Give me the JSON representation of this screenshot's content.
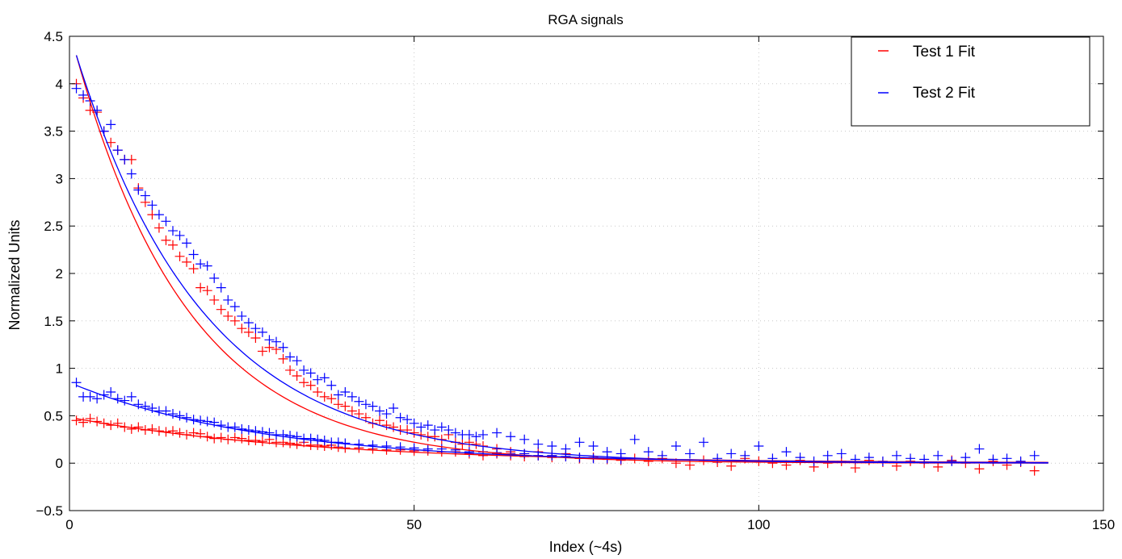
{
  "chart_data": {
    "type": "line",
    "title": "RGA signals",
    "xlabel": "Index (~4s)",
    "ylabel": "Normalized Units",
    "xlim": [
      0,
      150
    ],
    "ylim": [
      -0.5,
      4.5
    ],
    "xticks": [
      0,
      50,
      100,
      150
    ],
    "xtick_labels": [
      "0",
      "50",
      "100",
      "150"
    ],
    "yticks": [
      -0.5,
      0,
      0.5,
      1,
      1.5,
      2,
      2.5,
      3,
      3.5,
      4,
      4.5
    ],
    "ytick_labels": [
      "−0.5",
      "0",
      "0.5",
      "1",
      "1.5",
      "2",
      "2.5",
      "3",
      "3.5",
      "4",
      "4.5"
    ],
    "grid": true,
    "legend_position": "top-right",
    "legend": [
      {
        "label": "Test 1 Fit",
        "color": "#ff0000"
      },
      {
        "label": "Test 2 Fit",
        "color": "#0000ff"
      }
    ],
    "series": [
      {
        "kind": "markers",
        "color": "#ff0000",
        "x": [
          1,
          2,
          3,
          4,
          5,
          6,
          7,
          8,
          9,
          10,
          11,
          12,
          13,
          14,
          15,
          16,
          17,
          18,
          19,
          20,
          21,
          22,
          23,
          24,
          25,
          26,
          27,
          28,
          29,
          30,
          31,
          32,
          33,
          34,
          35,
          36,
          37,
          38,
          39,
          40,
          41,
          42,
          43,
          44,
          45,
          46,
          47,
          48,
          49,
          50,
          51,
          52,
          53,
          54,
          55,
          56,
          57,
          58,
          59,
          60,
          62,
          64,
          66,
          68,
          70,
          72,
          74,
          76,
          78,
          80,
          82,
          84,
          86,
          88,
          90,
          92,
          94,
          96,
          98,
          100,
          102,
          104,
          106,
          108,
          110,
          112,
          114,
          116,
          118,
          120,
          122,
          124,
          126,
          128,
          130,
          132,
          134,
          136,
          138,
          140
        ],
        "y": [
          4.0,
          3.85,
          3.72,
          3.7,
          3.5,
          3.38,
          3.3,
          3.2,
          3.2,
          2.9,
          2.75,
          2.62,
          2.48,
          2.35,
          2.3,
          2.18,
          2.12,
          2.05,
          1.85,
          1.82,
          1.72,
          1.62,
          1.55,
          1.5,
          1.42,
          1.38,
          1.32,
          1.18,
          1.22,
          1.2,
          1.1,
          0.98,
          0.92,
          0.85,
          0.82,
          0.75,
          0.7,
          0.68,
          0.62,
          0.6,
          0.55,
          0.52,
          0.48,
          0.42,
          0.45,
          0.4,
          0.38,
          0.35,
          0.35,
          0.32,
          0.3,
          0.28,
          0.28,
          0.25,
          0.3,
          0.22,
          0.2,
          0.22,
          0.2,
          0.18,
          0.15,
          0.12,
          0.1,
          0.12,
          0.08,
          0.1,
          0.05,
          0.06,
          0.04,
          0.03,
          0.05,
          0.02,
          0.05,
          0.0,
          -0.02,
          0.03,
          0.01,
          -0.03,
          0.05,
          0.02,
          0.0,
          -0.02,
          0.03,
          -0.04,
          0.0,
          0.02,
          -0.05,
          0.03,
          0.01,
          -0.03,
          0.02,
          0.0,
          -0.04,
          0.03,
          0.0,
          -0.06,
          0.02,
          -0.02,
          0.01,
          -0.08
        ]
      },
      {
        "kind": "markers",
        "color": "#ff0000",
        "x": [
          1,
          2,
          3,
          4,
          5,
          6,
          7,
          8,
          9,
          10,
          11,
          12,
          13,
          14,
          15,
          16,
          17,
          18,
          19,
          20,
          21,
          22,
          23,
          24,
          25,
          26,
          27,
          28,
          29,
          30,
          31,
          32,
          33,
          34,
          35,
          36,
          37,
          38,
          39,
          40,
          42,
          44,
          46,
          48,
          50,
          52,
          54,
          56,
          58,
          60,
          62,
          64,
          66,
          68,
          70,
          72,
          74,
          76,
          78,
          80
        ],
        "y": [
          0.45,
          0.43,
          0.47,
          0.44,
          0.42,
          0.4,
          0.42,
          0.38,
          0.36,
          0.38,
          0.35,
          0.36,
          0.34,
          0.33,
          0.34,
          0.32,
          0.3,
          0.32,
          0.31,
          0.28,
          0.26,
          0.27,
          0.25,
          0.27,
          0.26,
          0.24,
          0.24,
          0.23,
          0.25,
          0.22,
          0.22,
          0.21,
          0.2,
          0.22,
          0.19,
          0.19,
          0.18,
          0.19,
          0.17,
          0.16,
          0.16,
          0.15,
          0.14,
          0.14,
          0.13,
          0.13,
          0.12,
          0.12,
          0.1,
          0.08,
          0.1,
          0.08,
          0.07,
          0.08,
          0.06,
          0.07,
          0.05,
          0.06,
          0.05,
          0.04
        ]
      },
      {
        "kind": "markers",
        "color": "#0000ff",
        "x": [
          1,
          2,
          3,
          4,
          5,
          6,
          7,
          8,
          9,
          10,
          11,
          12,
          13,
          14,
          15,
          16,
          17,
          18,
          19,
          20,
          21,
          22,
          23,
          24,
          25,
          26,
          27,
          28,
          29,
          30,
          31,
          32,
          33,
          34,
          35,
          36,
          37,
          38,
          39,
          40,
          41,
          42,
          43,
          44,
          45,
          46,
          47,
          48,
          49,
          50,
          51,
          52,
          53,
          54,
          55,
          56,
          57,
          58,
          59,
          60,
          62,
          64,
          66,
          68,
          70,
          72,
          74,
          76,
          78,
          80,
          82,
          84,
          86,
          88,
          90,
          92,
          94,
          96,
          98,
          100,
          102,
          104,
          106,
          108,
          110,
          112,
          114,
          116,
          118,
          120,
          122,
          124,
          126,
          128,
          130,
          132,
          134,
          136,
          138,
          140
        ],
        "y": [
          3.95,
          3.88,
          3.82,
          3.72,
          3.5,
          3.57,
          3.3,
          3.2,
          3.05,
          2.88,
          2.82,
          2.72,
          2.62,
          2.55,
          2.45,
          2.4,
          2.32,
          2.2,
          2.1,
          2.08,
          1.95,
          1.85,
          1.72,
          1.65,
          1.55,
          1.48,
          1.42,
          1.38,
          1.3,
          1.28,
          1.22,
          1.12,
          1.08,
          0.98,
          0.95,
          0.88,
          0.9,
          0.82,
          0.72,
          0.75,
          0.7,
          0.65,
          0.62,
          0.6,
          0.55,
          0.52,
          0.58,
          0.48,
          0.46,
          0.42,
          0.38,
          0.4,
          0.35,
          0.38,
          0.35,
          0.32,
          0.3,
          0.3,
          0.28,
          0.3,
          0.32,
          0.28,
          0.25,
          0.2,
          0.18,
          0.15,
          0.22,
          0.18,
          0.12,
          0.1,
          0.25,
          0.12,
          0.08,
          0.18,
          0.1,
          0.22,
          0.05,
          0.1,
          0.08,
          0.18,
          0.05,
          0.12,
          0.06,
          0.02,
          0.08,
          0.1,
          0.04,
          0.06,
          0.02,
          0.08,
          0.05,
          0.04,
          0.08,
          0.02,
          0.06,
          0.15,
          0.04,
          0.05,
          0.02,
          0.08
        ]
      },
      {
        "kind": "markers",
        "color": "#0000ff",
        "x": [
          1,
          2,
          3,
          4,
          5,
          6,
          7,
          8,
          9,
          10,
          11,
          12,
          13,
          14,
          15,
          16,
          17,
          18,
          19,
          20,
          21,
          22,
          23,
          24,
          25,
          26,
          27,
          28,
          29,
          30,
          31,
          32,
          33,
          34,
          35,
          36,
          37,
          38,
          39,
          40,
          42,
          44,
          46,
          48,
          50,
          52,
          54,
          56,
          58,
          60,
          62,
          64,
          66,
          68,
          70,
          72,
          74,
          76,
          78,
          80
        ],
        "y": [
          0.85,
          0.7,
          0.7,
          0.68,
          0.72,
          0.75,
          0.68,
          0.66,
          0.7,
          0.62,
          0.6,
          0.58,
          0.55,
          0.55,
          0.52,
          0.5,
          0.48,
          0.46,
          0.45,
          0.44,
          0.43,
          0.4,
          0.38,
          0.38,
          0.36,
          0.35,
          0.34,
          0.33,
          0.32,
          0.3,
          0.3,
          0.29,
          0.28,
          0.26,
          0.26,
          0.25,
          0.24,
          0.22,
          0.22,
          0.21,
          0.2,
          0.19,
          0.18,
          0.17,
          0.16,
          0.15,
          0.15,
          0.14,
          0.12,
          0.12,
          0.11,
          0.1,
          0.1,
          0.08,
          0.08,
          0.07,
          0.06,
          0.05,
          0.05,
          0.04
        ]
      },
      {
        "kind": "fit",
        "color": "#ff0000",
        "a": 4.3,
        "tau": 16.5,
        "x": [
          1,
          142
        ]
      },
      {
        "kind": "fit",
        "color": "#0000ff",
        "a": 4.3,
        "tau": 18.5,
        "x": [
          1,
          142
        ]
      },
      {
        "kind": "fit",
        "color": "#ff0000",
        "a": 0.47,
        "tau": 35,
        "x": [
          1,
          142
        ]
      },
      {
        "kind": "fit",
        "color": "#0000ff",
        "a": 0.82,
        "tau": 28,
        "x": [
          1,
          142
        ]
      }
    ]
  }
}
